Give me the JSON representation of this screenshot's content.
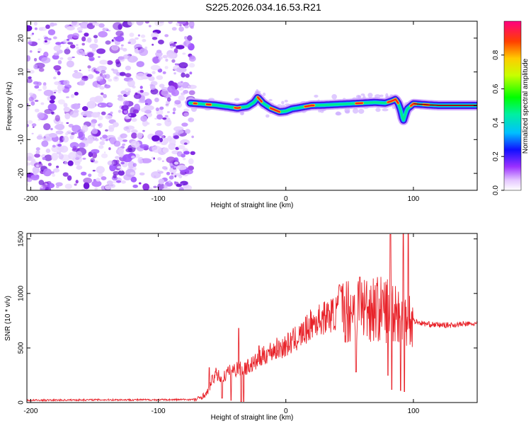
{
  "title": "S225.2026.034.16.53.R21",
  "colors": {
    "axis": "#000000",
    "series": "#e8232a",
    "noise": "#8a2be2",
    "plot_bg": "#ffffff"
  },
  "chart_data": [
    {
      "type": "heatmap",
      "xlabel": "Height of straight line (km)",
      "ylabel": "Frequency (Hz)",
      "xlim": [
        -203,
        150
      ],
      "ylim": [
        -25,
        25
      ],
      "xticks": [
        "-200",
        "-100",
        "0",
        "100"
      ],
      "yticks": [
        "-20",
        "-10",
        "0",
        "10",
        "20"
      ],
      "noise_region_x": [
        -203,
        -75
      ],
      "signal_trace": {
        "x": [
          -75,
          -65,
          -55,
          -45,
          -38,
          -30,
          -25,
          -22,
          -18,
          -12,
          -5,
          0,
          5,
          10,
          20,
          30,
          40,
          50,
          60,
          70,
          78,
          83,
          86,
          88,
          90,
          92,
          95,
          100,
          110,
          120,
          130,
          150
        ],
        "freq_hz": [
          0.8,
          0.5,
          0.2,
          -0.3,
          -0.7,
          -0.2,
          1.0,
          2.5,
          0.8,
          -0.7,
          -1.8,
          -1.6,
          -0.9,
          -0.6,
          0.1,
          0.2,
          0.4,
          0.6,
          0.8,
          1.0,
          0.8,
          1.4,
          1.9,
          0.8,
          -1.2,
          -4.5,
          -1.0,
          0.6,
          0.3,
          0.1,
          0.1,
          0.1
        ]
      },
      "colorbar": {
        "label": "Normalized spectral amplitude",
        "ticks": [
          "0.0",
          "0.2",
          "0.4",
          "0.6",
          "0.8"
        ],
        "range": [
          0,
          1
        ]
      }
    },
    {
      "type": "line",
      "xlabel": "Height of straight line (km)",
      "ylabel": "SNR (10 * v/v)",
      "xlim": [
        -203,
        150
      ],
      "ylim": [
        0,
        1550
      ],
      "xticks": [
        "-200",
        "-100",
        "0",
        "100"
      ],
      "yticks": [
        "0",
        "500",
        "1000",
        "1500"
      ],
      "series": [
        {
          "name": "SNR",
          "x": [
            -203,
            -150,
            -100,
            -70,
            -62,
            -58,
            -55,
            -50,
            -45,
            -40,
            -37,
            -35,
            -30,
            -25,
            -20,
            -15,
            -10,
            -5,
            0,
            5,
            10,
            15,
            20,
            25,
            30,
            35,
            40,
            45,
            50,
            55,
            60,
            65,
            70,
            75,
            80,
            85,
            90,
            95,
            100,
            105,
            110,
            120,
            130,
            140,
            150
          ],
          "values": [
            20,
            25,
            25,
            28,
            80,
            200,
            260,
            220,
            280,
            300,
            320,
            300,
            330,
            360,
            400,
            450,
            480,
            500,
            520,
            560,
            600,
            650,
            720,
            750,
            780,
            800,
            820,
            840,
            850,
            860,
            870,
            880,
            860,
            850,
            860,
            860,
            830,
            780,
            750,
            730,
            720,
            710,
            710,
            720,
            720
          ]
        }
      ],
      "spikes": [
        {
          "x": -60,
          "y": 320
        },
        {
          "x": -37,
          "y": 680
        },
        {
          "x": -35,
          "y": 590
        },
        {
          "x": -21,
          "y": 520
        },
        {
          "x": 42,
          "y": 1080
        },
        {
          "x": 55,
          "y": 1250
        },
        {
          "x": 58,
          "y": 1150
        },
        {
          "x": 80,
          "y": 1080
        },
        {
          "x": 82,
          "y": 1540
        },
        {
          "x": 90,
          "y": 1300
        },
        {
          "x": 92,
          "y": 1550
        },
        {
          "x": 96,
          "y": 1550
        }
      ],
      "dips": [
        {
          "x": -50,
          "y": 40
        },
        {
          "x": -43,
          "y": 20
        },
        {
          "x": -35,
          "y": 10
        },
        {
          "x": -33,
          "y": 10
        },
        {
          "x": 55,
          "y": 280
        },
        {
          "x": 80,
          "y": 250
        },
        {
          "x": 83,
          "y": 120
        },
        {
          "x": 90,
          "y": 110
        },
        {
          "x": 93,
          "y": 100
        }
      ]
    }
  ]
}
